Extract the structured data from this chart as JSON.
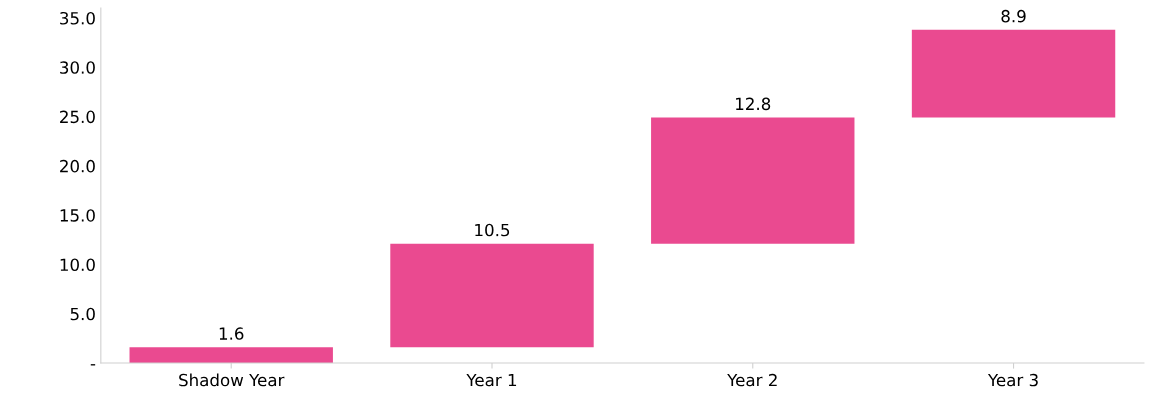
{
  "chart_data": {
    "type": "bar",
    "categories": [
      "Shadow Year",
      "Year 1",
      "Year 2",
      "Year 3"
    ],
    "values": [
      1.6,
      10.5,
      12.8,
      8.9
    ],
    "base": [
      0,
      1.6,
      12.1,
      24.9
    ],
    "color": "#ea4a90",
    "data_labels": true,
    "ylim": [
      0,
      36
    ],
    "yticks": [
      {
        "value": 0,
        "label": "-"
      },
      {
        "value": 5,
        "label": "5.0"
      },
      {
        "value": 10,
        "label": "10.0"
      },
      {
        "value": 15,
        "label": "15.0"
      },
      {
        "value": 20,
        "label": "20.0"
      },
      {
        "value": 25,
        "label": "25.0"
      },
      {
        "value": 30,
        "label": "30.0"
      },
      {
        "value": 35,
        "label": "35.0"
      }
    ],
    "grid": false
  }
}
